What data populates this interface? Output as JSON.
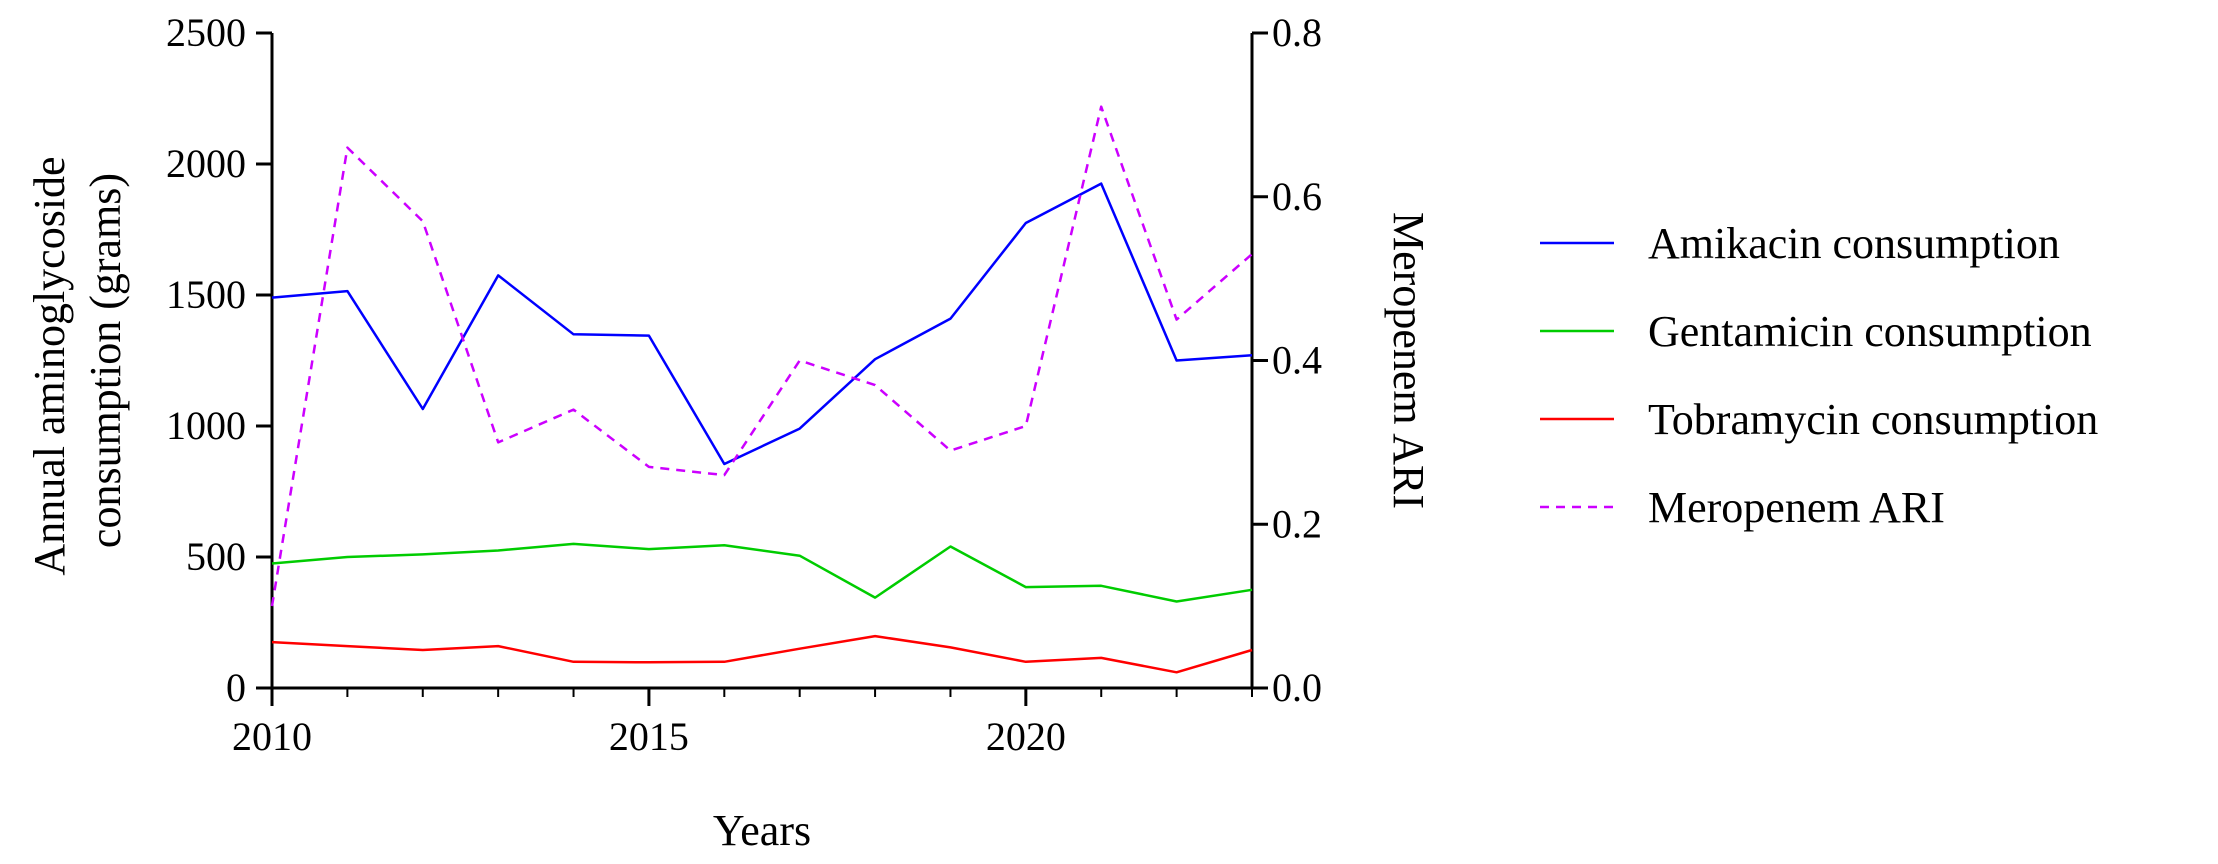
{
  "chart_data": {
    "type": "line",
    "title": "",
    "xlabel": "Years",
    "ylabel_left": "Annual aminoglycoside consumption (grams)",
    "ylabel_left_lines": [
      "Annual aminoglycoside",
      "consumption (grams)"
    ],
    "ylabel_right": "Meropenem ARI",
    "xlim": [
      2010,
      2023
    ],
    "ylim_left": [
      0,
      2500
    ],
    "ylim_right": [
      0,
      0.8
    ],
    "x_ticks": [
      "2010",
      "2015",
      "2020"
    ],
    "y_left_ticks": [
      "0",
      "500",
      "1000",
      "1500",
      "2000",
      "2500"
    ],
    "y_right_ticks": [
      "0.0",
      "0.2",
      "0.4",
      "0.6",
      "0.8"
    ],
    "grid": false,
    "legend_position": "right",
    "x": [
      2010,
      2011,
      2012,
      2013,
      2014,
      2015,
      2016,
      2017,
      2018,
      2019,
      2020,
      2021,
      2022,
      2023
    ],
    "series": [
      {
        "name": "Amikacin consumption",
        "axis": "left",
        "color": "#0000ff",
        "dash": "solid",
        "values": [
          1490,
          1515,
          1065,
          1575,
          1350,
          1345,
          855,
          990,
          1255,
          1410,
          1775,
          1925,
          1250,
          1270
        ]
      },
      {
        "name": "Gentamicin consumption",
        "axis": "left",
        "color": "#00cc00",
        "dash": "solid",
        "values": [
          475,
          500,
          510,
          525,
          550,
          530,
          545,
          505,
          345,
          540,
          385,
          390,
          330,
          375
        ]
      },
      {
        "name": "Tobramycin consumption",
        "axis": "left",
        "color": "#ff0000",
        "dash": "solid",
        "values": [
          175,
          160,
          145,
          160,
          100,
          98,
          100,
          150,
          198,
          155,
          100,
          115,
          60,
          145
        ]
      },
      {
        "name": "Meropenem ARI",
        "axis": "right",
        "color": "#cc00ff",
        "dash": "dashed",
        "values": [
          0.1,
          0.66,
          0.57,
          0.3,
          0.34,
          0.27,
          0.26,
          0.4,
          0.37,
          0.29,
          0.32,
          0.71,
          0.45,
          0.53
        ]
      }
    ]
  }
}
